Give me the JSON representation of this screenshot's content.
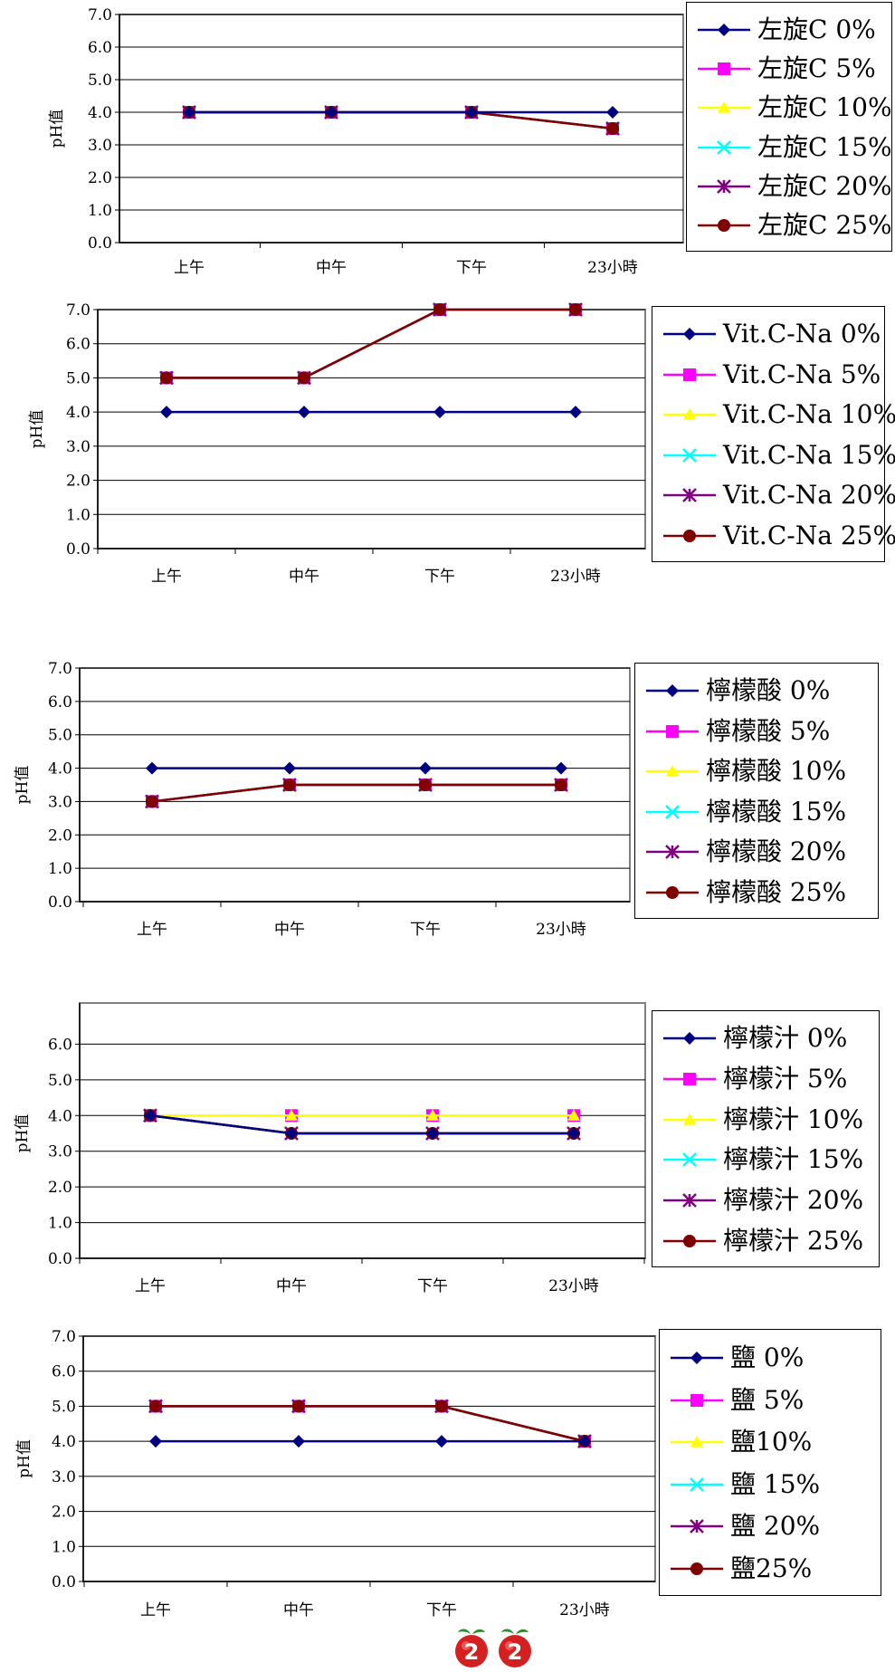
{
  "colors": {
    "s0": "#000080",
    "s5": "#FF00FF",
    "s10": "#FFFF00",
    "s15": "#00FFFF",
    "s20": "#800080",
    "s25": "#800000"
  },
  "markers": [
    "diamond",
    "square",
    "triangle",
    "x",
    "star",
    "circle"
  ],
  "chart_data": [
    {
      "type": "line",
      "categories": [
        "上午",
        "中午",
        "下午",
        "23小時"
      ],
      "ylabel": "pH值",
      "ylim": [
        0,
        7
      ],
      "yticks": [
        "0.0",
        "1.0",
        "2.0",
        "3.0",
        "4.0",
        "5.0",
        "6.0",
        "7.0"
      ],
      "grid": true,
      "legend": "right",
      "series": [
        {
          "name": "左旋C 0%",
          "values": [
            4,
            4,
            4,
            4
          ]
        },
        {
          "name": "左旋C 5%",
          "values": [
            4,
            4,
            4,
            3.5
          ]
        },
        {
          "name": "左旋C 10%",
          "values": [
            4,
            4,
            4,
            3.5
          ]
        },
        {
          "name": "左旋C 15%",
          "values": [
            4,
            4,
            4,
            3.5
          ]
        },
        {
          "name": "左旋C 20%",
          "values": [
            4,
            4,
            4,
            3.5
          ]
        },
        {
          "name": "左旋C 25%",
          "values": [
            4,
            4,
            4,
            3.5
          ]
        }
      ]
    },
    {
      "type": "line",
      "categories": [
        "上午",
        "中午",
        "下午",
        "23小時"
      ],
      "ylabel": "pH值",
      "ylim": [
        0,
        7
      ],
      "yticks": [
        "0.0",
        "1.0",
        "2.0",
        "3.0",
        "4.0",
        "5.0",
        "6.0",
        "7.0"
      ],
      "grid": true,
      "legend": "right",
      "series": [
        {
          "name": "Vit.C-Na 0%",
          "values": [
            4,
            4,
            4,
            4
          ]
        },
        {
          "name": "Vit.C-Na 5%",
          "values": [
            5,
            5,
            7,
            7
          ]
        },
        {
          "name": "Vit.C-Na 10%",
          "values": [
            5,
            5,
            7,
            7
          ]
        },
        {
          "name": "Vit.C-Na 15%",
          "values": [
            5,
            5,
            7,
            7
          ]
        },
        {
          "name": "Vit.C-Na 20%",
          "values": [
            5,
            5,
            7,
            7
          ]
        },
        {
          "name": "Vit.C-Na 25%",
          "values": [
            5,
            5,
            7,
            7
          ]
        }
      ]
    },
    {
      "type": "line",
      "categories": [
        "上午",
        "中午",
        "下午",
        "23小時"
      ],
      "ylabel": "pH值",
      "ylim": [
        0,
        7
      ],
      "yticks": [
        "0.0",
        "1.0",
        "2.0",
        "3.0",
        "4.0",
        "5.0",
        "6.0",
        "7.0"
      ],
      "grid": true,
      "legend": "right",
      "series": [
        {
          "name": "檸檬酸 0%",
          "values": [
            4,
            4,
            4,
            4
          ]
        },
        {
          "name": "檸檬酸 5%",
          "values": [
            3,
            3.5,
            3.5,
            3.5
          ]
        },
        {
          "name": "檸檬酸 10%",
          "values": [
            3,
            3.5,
            3.5,
            3.5
          ]
        },
        {
          "name": "檸檬酸 15%",
          "values": [
            3,
            3.5,
            3.5,
            3.5
          ]
        },
        {
          "name": "檸檬酸 20%",
          "values": [
            3,
            3.5,
            3.5,
            3.5
          ]
        },
        {
          "name": "檸檬酸 25%",
          "values": [
            3,
            3.5,
            3.5,
            3.5
          ]
        }
      ]
    },
    {
      "type": "line",
      "categories": [
        "上午",
        "中午",
        "下午",
        "23小時"
      ],
      "ylabel": "pH值",
      "ylim": [
        0,
        7
      ],
      "yticks": [
        "0.0",
        "1.0",
        "2.0",
        "3.0",
        "4.0",
        "5.0",
        "6.0"
      ],
      "grid": true,
      "legend": "right",
      "series": [
        {
          "name": "檸檬汁 0%",
          "values": [
            4,
            3.5,
            3.5,
            3.5
          ]
        },
        {
          "name": "檸檬汁 5%",
          "values": [
            4,
            4,
            4,
            4
          ]
        },
        {
          "name": "檸檬汁 10%",
          "values": [
            4,
            4,
            4,
            4
          ]
        },
        {
          "name": "檸檬汁 15%",
          "values": [
            4,
            3.5,
            3.5,
            3.5
          ]
        },
        {
          "name": "檸檬汁 20%",
          "values": [
            4,
            3.5,
            3.5,
            3.5
          ]
        },
        {
          "name": "檸檬汁 25%",
          "values": [
            4,
            3.5,
            3.5,
            3.5
          ]
        }
      ]
    },
    {
      "type": "line",
      "categories": [
        "上午",
        "中午",
        "下午",
        "23小時"
      ],
      "ylabel": "pH值",
      "ylim": [
        0,
        7
      ],
      "yticks": [
        "0.0",
        "1.0",
        "2.0",
        "3.0",
        "4.0",
        "5.0",
        "6.0",
        "7.0"
      ],
      "grid": true,
      "legend": "right",
      "series": [
        {
          "name": "鹽 0%",
          "values": [
            4,
            4,
            4,
            4
          ]
        },
        {
          "name": "鹽 5%",
          "values": [
            5,
            5,
            5,
            4
          ]
        },
        {
          "name": "鹽10%",
          "values": [
            5,
            5,
            5,
            4
          ]
        },
        {
          "name": "鹽 15%",
          "values": [
            5,
            5,
            5,
            4
          ]
        },
        {
          "name": "鹽 20%",
          "values": [
            5,
            5,
            5,
            4
          ]
        },
        {
          "name": "鹽25%",
          "values": [
            5,
            5,
            5,
            4
          ]
        }
      ]
    }
  ],
  "badges": [
    "2",
    "2"
  ]
}
